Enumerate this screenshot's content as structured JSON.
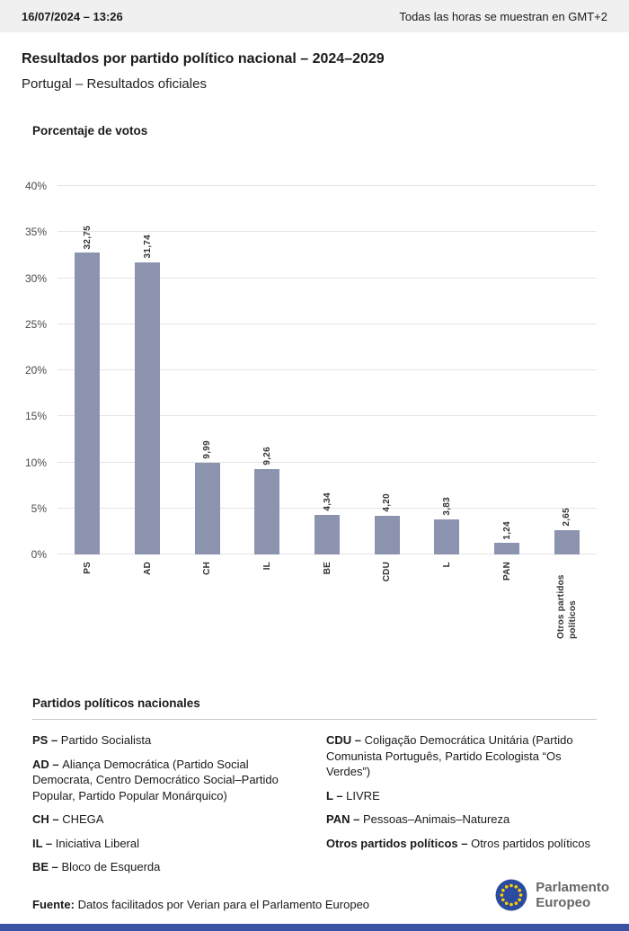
{
  "topbar": {
    "datetime": "16/07/2024 – 13:26",
    "timezone_note": "Todas las horas se muestran en GMT+2"
  },
  "page": {
    "title": "Resultados por partido político nacional – 2024–2029",
    "subtitle": "Portugal – Resultados oficiales"
  },
  "chart_data": {
    "type": "bar",
    "title": "Porcentaje de votos",
    "categories": [
      "PS",
      "AD",
      "CH",
      "IL",
      "BE",
      "CDU",
      "L",
      "PAN",
      "Otros partidos políticos"
    ],
    "values": [
      32.75,
      31.74,
      9.99,
      9.26,
      4.34,
      4.2,
      3.83,
      1.24,
      2.65
    ],
    "value_labels": [
      "32,75",
      "31,74",
      "9,99",
      "9,26",
      "4,34",
      "4,20",
      "3,83",
      "1,24",
      "2,65"
    ],
    "ylim": [
      0,
      40
    ],
    "ytick_step": 5,
    "ytick_labels": [
      "0%",
      "5%",
      "10%",
      "15%",
      "20%",
      "25%",
      "30%",
      "35%",
      "40%"
    ],
    "grid": true,
    "bar_color": "#8b93ae",
    "legend_position": "none"
  },
  "legend": {
    "heading": "Partidos políticos nacionales",
    "left": [
      {
        "abbr": "PS –",
        "name": "Partido Socialista"
      },
      {
        "abbr": "AD –",
        "name": "Aliança Democrática (Partido Social Democrata, Centro Democrático Social–Partido Popular, Partido Popular Monárquico)"
      },
      {
        "abbr": "CH –",
        "name": "CHEGA"
      },
      {
        "abbr": "IL –",
        "name": "Iniciativa Liberal"
      },
      {
        "abbr": "BE –",
        "name": "Bloco de Esquerda"
      }
    ],
    "right": [
      {
        "abbr": "CDU –",
        "name": "Coligação Democrática Unitária (Partido Comunista Português, Partido Ecologista “Os Verdes”)"
      },
      {
        "abbr": "L –",
        "name": "LIVRE"
      },
      {
        "abbr": "PAN –",
        "name": "Pessoas–Animais–Natureza"
      },
      {
        "abbr": "Otros partidos políticos –",
        "name": "Otros partidos políticos"
      }
    ]
  },
  "footer": {
    "source_label": "Fuente:",
    "source_text": " Datos facilitados por Verian para el Parlamento Europeo",
    "logo_line1": "Parlamento",
    "logo_line2": "Europeo"
  },
  "colors": {
    "bar": "#8b93ae",
    "bottom_strip": "#3a53a5",
    "eu_blue": "#2a4b9e",
    "star_yellow": "#ffcc00",
    "topbar_bg": "#f0f0f0"
  }
}
